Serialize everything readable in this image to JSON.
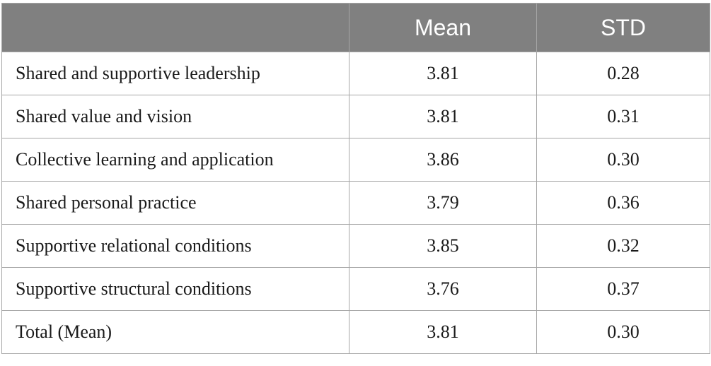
{
  "table": {
    "headers": [
      "",
      "Mean",
      "STD"
    ],
    "rows": [
      {
        "label": "Shared and supportive leadership",
        "mean": "3.81",
        "std": "0.28"
      },
      {
        "label": "Shared value and vision",
        "mean": "3.81",
        "std": "0.31"
      },
      {
        "label": "Collective learning and application",
        "mean": "3.86",
        "std": "0.30"
      },
      {
        "label": "Shared personal practice",
        "mean": "3.79",
        "std": "0.36"
      },
      {
        "label": "Supportive relational conditions",
        "mean": "3.85",
        "std": "0.32"
      },
      {
        "label": "Supportive structural conditions",
        "mean": "3.76",
        "std": "0.37"
      },
      {
        "label": "Total (Mean)",
        "mean": "3.81",
        "std": "0.30"
      }
    ]
  },
  "colors": {
    "header_background": "#808080",
    "header_text": "#ffffff",
    "border": "#a6a6a6",
    "body_text": "#1a1a1a"
  }
}
